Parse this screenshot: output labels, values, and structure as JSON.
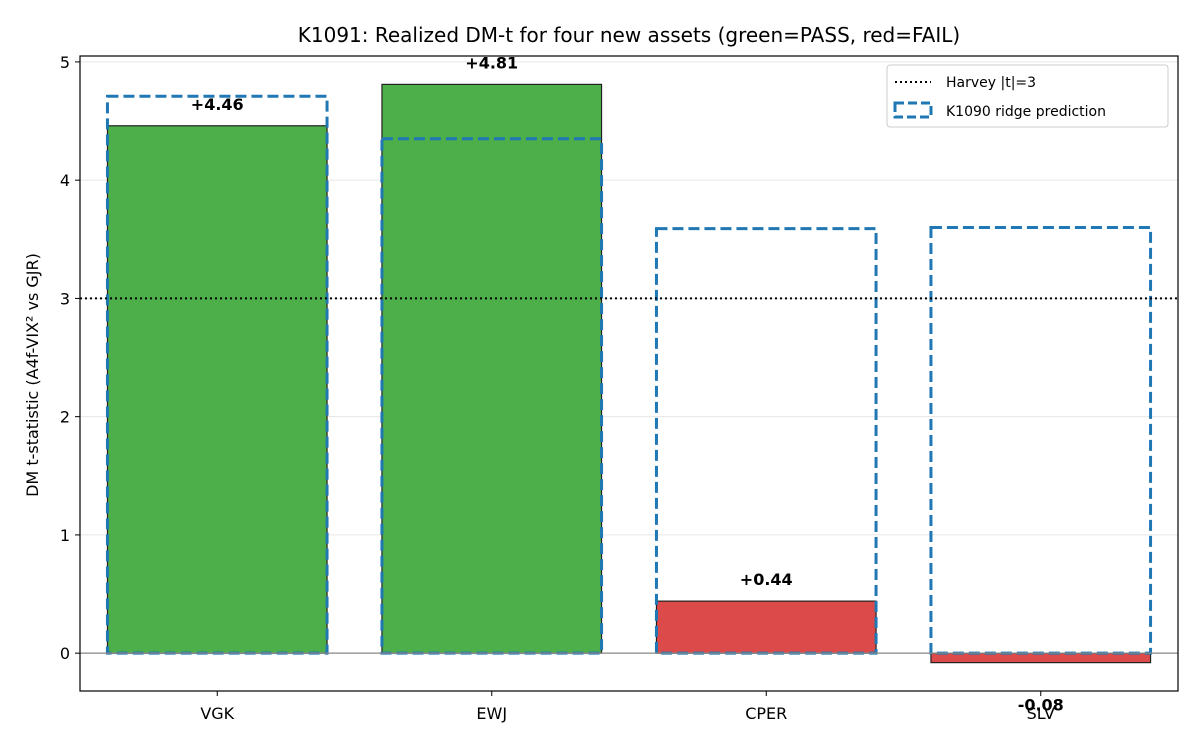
{
  "chart_data": {
    "type": "bar",
    "title": "K1091: Realized DM-t for four new assets (green=PASS, red=FAIL)",
    "xlabel": "",
    "ylabel": "DM t-statistic (A4f-VIX² vs GJR)",
    "categories": [
      "VGK",
      "EWJ",
      "CPER",
      "SLV"
    ],
    "series": [
      {
        "values": [
          4.46,
          4.81,
          0.44,
          -0.08
        ],
        "labels": [
          "+4.46",
          "+4.81",
          "+0.44",
          "-0.08"
        ],
        "status": [
          "PASS",
          "PASS",
          "FAIL",
          "FAIL"
        ]
      },
      {
        "name": "K1090 ridge prediction",
        "values": [
          4.71,
          4.35,
          3.59,
          3.6
        ]
      }
    ],
    "reference_line": {
      "name": "Harvey |t|=3",
      "value": 3
    },
    "ylim": [
      -0.32,
      5.05
    ],
    "yticks": [
      "0",
      "1",
      "2",
      "3",
      "4",
      "5"
    ],
    "grid": "horizontal",
    "legend": "top-right",
    "colors": {
      "pass": "#4daf4a",
      "fail": "#dc4a4a",
      "prediction": "#1f77b4",
      "reference": "#000000",
      "zero_line": "#888888",
      "grid": "#e6e6e6"
    }
  }
}
